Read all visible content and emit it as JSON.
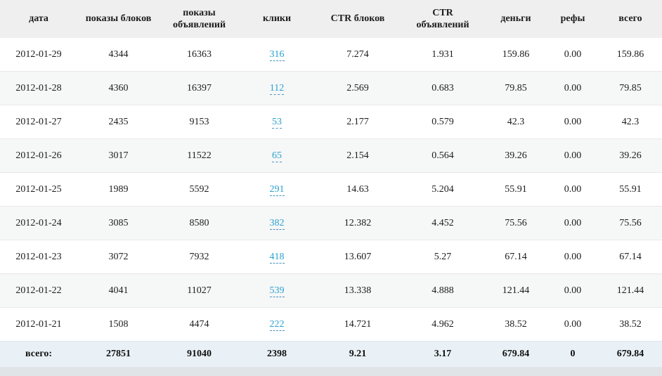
{
  "table": {
    "columns": [
      {
        "key": "date",
        "label": "дата"
      },
      {
        "key": "block-shows",
        "label": "показы блоков"
      },
      {
        "key": "ad-shows",
        "label": "показы объявлений"
      },
      {
        "key": "clicks",
        "label": "клики"
      },
      {
        "key": "ctr-blocks",
        "label": "CTR блоков"
      },
      {
        "key": "ctr-ads",
        "label": "CTR объявлений"
      },
      {
        "key": "money",
        "label": "деньги"
      },
      {
        "key": "refs",
        "label": "рефы"
      },
      {
        "key": "total",
        "label": "всего"
      }
    ],
    "rows": [
      {
        "date": "2012-01-29",
        "block_shows": "4344",
        "ad_shows": "16363",
        "clicks": "316",
        "ctr_blocks": "7.274",
        "ctr_ads": "1.931",
        "money": "159.86",
        "refs": "0.00",
        "total": "159.86"
      },
      {
        "date": "2012-01-28",
        "block_shows": "4360",
        "ad_shows": "16397",
        "clicks": "112",
        "ctr_blocks": "2.569",
        "ctr_ads": "0.683",
        "money": "79.85",
        "refs": "0.00",
        "total": "79.85"
      },
      {
        "date": "2012-01-27",
        "block_shows": "2435",
        "ad_shows": "9153",
        "clicks": "53",
        "ctr_blocks": "2.177",
        "ctr_ads": "0.579",
        "money": "42.3",
        "refs": "0.00",
        "total": "42.3"
      },
      {
        "date": "2012-01-26",
        "block_shows": "3017",
        "ad_shows": "11522",
        "clicks": "65",
        "ctr_blocks": "2.154",
        "ctr_ads": "0.564",
        "money": "39.26",
        "refs": "0.00",
        "total": "39.26"
      },
      {
        "date": "2012-01-25",
        "block_shows": "1989",
        "ad_shows": "5592",
        "clicks": "291",
        "ctr_blocks": "14.63",
        "ctr_ads": "5.204",
        "money": "55.91",
        "refs": "0.00",
        "total": "55.91"
      },
      {
        "date": "2012-01-24",
        "block_shows": "3085",
        "ad_shows": "8580",
        "clicks": "382",
        "ctr_blocks": "12.382",
        "ctr_ads": "4.452",
        "money": "75.56",
        "refs": "0.00",
        "total": "75.56"
      },
      {
        "date": "2012-01-23",
        "block_shows": "3072",
        "ad_shows": "7932",
        "clicks": "418",
        "ctr_blocks": "13.607",
        "ctr_ads": "5.27",
        "money": "67.14",
        "refs": "0.00",
        "total": "67.14"
      },
      {
        "date": "2012-01-22",
        "block_shows": "4041",
        "ad_shows": "11027",
        "clicks": "539",
        "ctr_blocks": "13.338",
        "ctr_ads": "4.888",
        "money": "121.44",
        "refs": "0.00",
        "total": "121.44"
      },
      {
        "date": "2012-01-21",
        "block_shows": "1508",
        "ad_shows": "4474",
        "clicks": "222",
        "ctr_blocks": "14.721",
        "ctr_ads": "4.962",
        "money": "38.52",
        "refs": "0.00",
        "total": "38.52"
      }
    ],
    "totals": {
      "label": "всего:",
      "block_shows": "27851",
      "ad_shows": "91040",
      "clicks": "2398",
      "ctr_blocks": "9.21",
      "ctr_ads": "3.17",
      "money": "679.84",
      "refs": "0",
      "total": "679.84"
    }
  },
  "colors": {
    "link": "#2ba1d0",
    "link_underline": "#4a93bd",
    "header_bg": "#efefef",
    "stripe_bg": "#f6f7f7",
    "totals_bg": "#eaf1f6",
    "page_bg": "#e1e4e6"
  }
}
